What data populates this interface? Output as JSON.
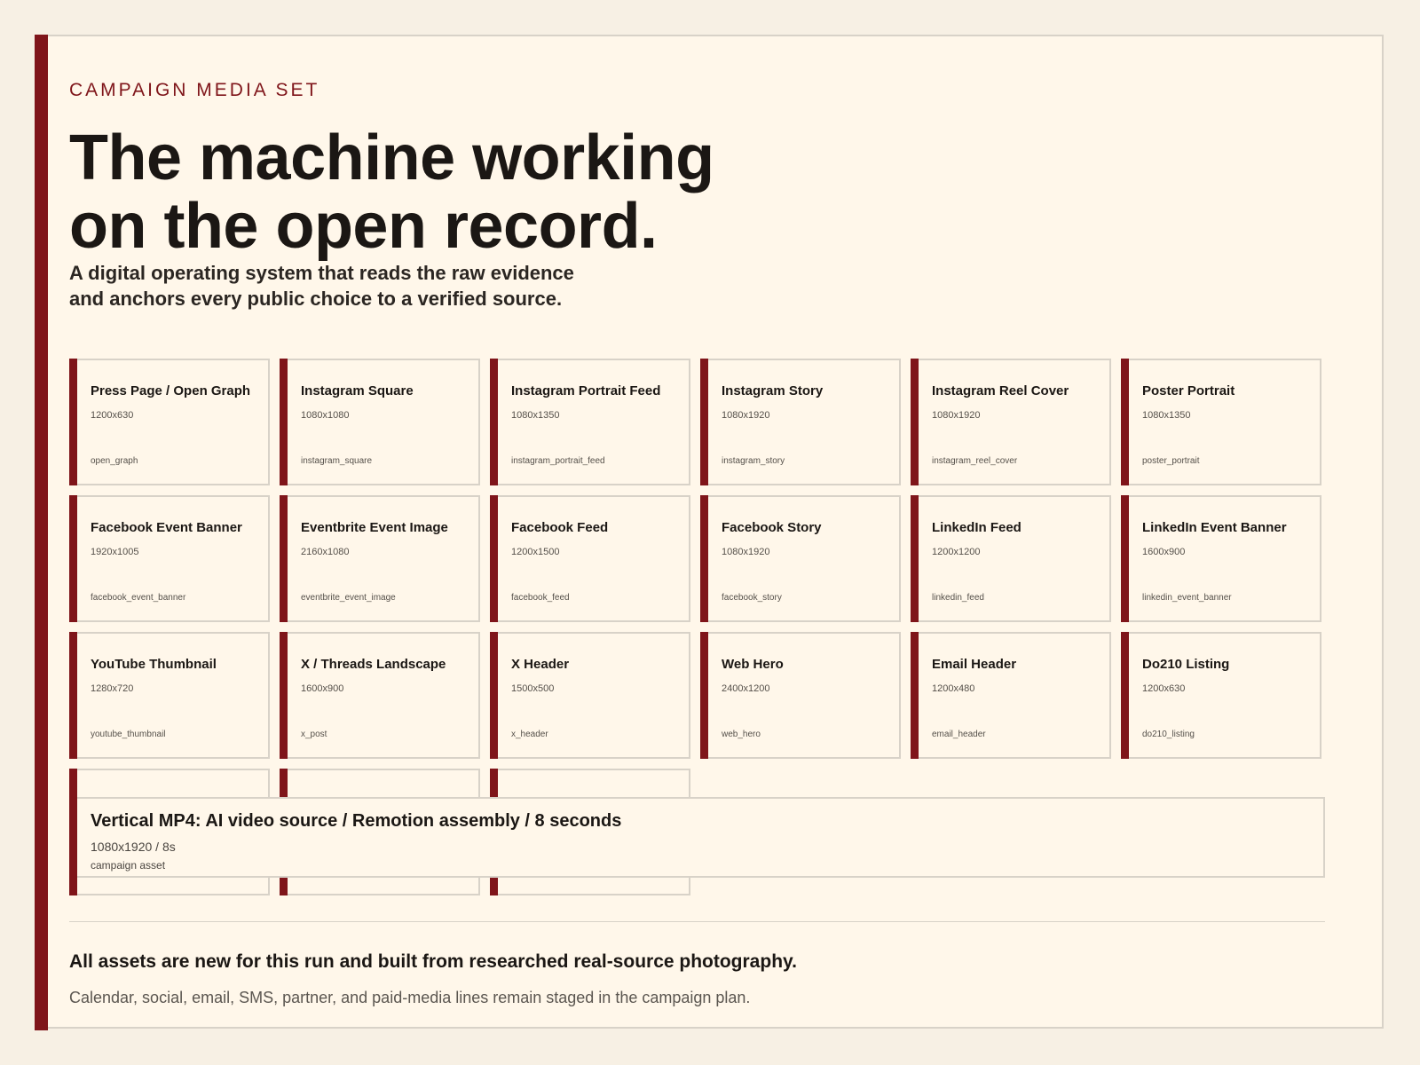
{
  "header": {
    "eyebrow": "CAMPAIGN MEDIA SET",
    "headline_line1": "The machine working",
    "headline_line2": "on the open record.",
    "subhead_line1": "A digital operating system that reads the raw evidence",
    "subhead_line2": "and anchors every public choice to a verified source."
  },
  "assets": [
    {
      "title": "Press Page / Open Graph",
      "size": "1200x630",
      "slug": "open_graph"
    },
    {
      "title": "Instagram Square",
      "size": "1080x1080",
      "slug": "instagram_square"
    },
    {
      "title": "Instagram Portrait Feed",
      "size": "1080x1350",
      "slug": "instagram_portrait_feed"
    },
    {
      "title": "Instagram Story",
      "size": "1080x1920",
      "slug": "instagram_story"
    },
    {
      "title": "Instagram Reel Cover",
      "size": "1080x1920",
      "slug": "instagram_reel_cover"
    },
    {
      "title": "Poster Portrait",
      "size": "1080x1350",
      "slug": "poster_portrait"
    },
    {
      "title": "Facebook Event Banner",
      "size": "1920x1005",
      "slug": "facebook_event_banner"
    },
    {
      "title": "Eventbrite Event Image",
      "size": "2160x1080",
      "slug": "eventbrite_event_image"
    },
    {
      "title": "Facebook Feed",
      "size": "1200x1500",
      "slug": "facebook_feed"
    },
    {
      "title": "Facebook Story",
      "size": "1080x1920",
      "slug": "facebook_story"
    },
    {
      "title": "LinkedIn Feed",
      "size": "1200x1200",
      "slug": "linkedin_feed"
    },
    {
      "title": "LinkedIn Event Banner",
      "size": "1600x900",
      "slug": "linkedin_event_banner"
    },
    {
      "title": "YouTube Thumbnail",
      "size": "1280x720",
      "slug": "youtube_thumbnail"
    },
    {
      "title": "X / Threads Landscape",
      "size": "1600x900",
      "slug": "x_post"
    },
    {
      "title": "X Header",
      "size": "1500x500",
      "slug": "x_header"
    },
    {
      "title": "Web Hero",
      "size": "2400x1200",
      "slug": "web_hero"
    },
    {
      "title": "Email Header",
      "size": "1200x480",
      "slug": "email_header"
    },
    {
      "title": "Do210 Listing",
      "size": "1200x630",
      "slug": "do210_listing"
    },
    {
      "title": "",
      "size": "",
      "slug": ""
    },
    {
      "title": "",
      "size": "",
      "slug": ""
    },
    {
      "title": "",
      "size": "",
      "slug": ""
    }
  ],
  "video": {
    "title": "Vertical MP4: AI video source / Remotion assembly / 8 seconds",
    "meta": "1080x1920 / 8s",
    "note": "campaign asset"
  },
  "footer": {
    "main": "All assets are new for this run and built from researched real-source photography.",
    "sub": "Calendar, social, email, SMS, partner, and paid-media lines remain staged in the campaign plan."
  },
  "colors": {
    "accent": "#7f151a",
    "background": "#f7f0e4",
    "panel": "#fff7ea",
    "border": "#d8d2c8"
  }
}
